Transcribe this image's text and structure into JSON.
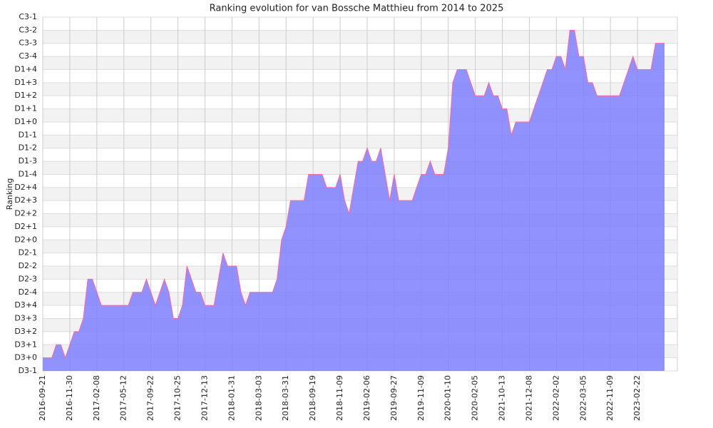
{
  "chart_data": {
    "type": "area",
    "title": "Ranking evolution for van Bossche Matthieu from 2014 to 2025",
    "y_label": "Ranking",
    "categories": [
      "2016-09-21",
      null,
      null,
      null,
      null,
      null,
      "2016-11-30",
      null,
      null,
      null,
      null,
      null,
      "2017-02-08",
      null,
      null,
      null,
      null,
      null,
      "2017-05-12",
      null,
      null,
      null,
      null,
      null,
      "2017-09-22",
      null,
      null,
      null,
      null,
      null,
      "2017-10-25",
      null,
      null,
      null,
      null,
      null,
      "2017-12-13",
      null,
      null,
      null,
      null,
      null,
      "2018-01-31",
      null,
      null,
      null,
      null,
      null,
      "2018-03-03",
      null,
      null,
      null,
      null,
      null,
      "2018-03-31",
      null,
      null,
      null,
      null,
      null,
      "2018-09-19",
      null,
      null,
      null,
      null,
      null,
      "2018-11-09",
      null,
      null,
      null,
      null,
      null,
      "2019-02-06",
      null,
      null,
      null,
      null,
      null,
      "2019-09-27",
      null,
      null,
      null,
      null,
      null,
      "2019-11-09",
      null,
      null,
      null,
      null,
      null,
      "2020-01-10",
      null,
      null,
      null,
      null,
      null,
      "2020-02-05",
      null,
      null,
      null,
      null,
      null,
      "2021-10-13",
      null,
      null,
      null,
      null,
      null,
      "2021-12-08",
      null,
      null,
      null,
      null,
      null,
      "2022-02-02",
      null,
      null,
      null,
      null,
      null,
      "2022-03-05",
      null,
      null,
      null,
      null,
      null,
      "2022-11-09",
      null,
      null,
      null,
      null,
      null,
      "2023-02-22",
      null,
      null,
      null,
      null,
      null,
      null
    ],
    "values": [
      1,
      1,
      1,
      2,
      2,
      1,
      2,
      3,
      3,
      4,
      7,
      7,
      6,
      5,
      5,
      5,
      5,
      5,
      5,
      5,
      6,
      6,
      6,
      7,
      6,
      5,
      6,
      7,
      6,
      4,
      4,
      5,
      8,
      7,
      6,
      6,
      5,
      5,
      5,
      7,
      9,
      8,
      8,
      8,
      6,
      5,
      6,
      6,
      6,
      6,
      6,
      6,
      7,
      10,
      11,
      13,
      13,
      13,
      13,
      15,
      15,
      15,
      15,
      14,
      14,
      14,
      15,
      13,
      12,
      14,
      16,
      16,
      17,
      16,
      16,
      17,
      15,
      13,
      15,
      13,
      13,
      13,
      13,
      14,
      15,
      15,
      16,
      15,
      15,
      15,
      17,
      22,
      23,
      23,
      23,
      22,
      21,
      21,
      21,
      22,
      21,
      21,
      20,
      20,
      18,
      19,
      19,
      19,
      19,
      20,
      21,
      22,
      23,
      23,
      24,
      24,
      23,
      26,
      26,
      24,
      24,
      22,
      22,
      21,
      21,
      21,
      21,
      21,
      21,
      22,
      23,
      24,
      23,
      23,
      23,
      23,
      25,
      25,
      25
    ],
    "color": "#7f7fff",
    "line_color": "#ff6699",
    "ylim": [
      0,
      27
    ],
    "yticks": [
      {
        "value": 0,
        "label": "D3-1"
      },
      {
        "value": 1,
        "label": "D3+0"
      },
      {
        "value": 2,
        "label": "D3+1"
      },
      {
        "value": 3,
        "label": "D3+2"
      },
      {
        "value": 4,
        "label": "D3+3"
      },
      {
        "value": 5,
        "label": "D3+4"
      },
      {
        "value": 6,
        "label": "D2-4"
      },
      {
        "value": 7,
        "label": "D2-3"
      },
      {
        "value": 8,
        "label": "D2-2"
      },
      {
        "value": 9,
        "label": "D2-1"
      },
      {
        "value": 10,
        "label": "D2+0"
      },
      {
        "value": 11,
        "label": "D2+1"
      },
      {
        "value": 12,
        "label": "D2+2"
      },
      {
        "value": 13,
        "label": "D2+3"
      },
      {
        "value": 14,
        "label": "D2+4"
      },
      {
        "value": 15,
        "label": "D1-4"
      },
      {
        "value": 16,
        "label": "D1-3"
      },
      {
        "value": 17,
        "label": "D1-2"
      },
      {
        "value": 18,
        "label": "D1-1"
      },
      {
        "value": 19,
        "label": "D1+0"
      },
      {
        "value": 20,
        "label": "D1+1"
      },
      {
        "value": 21,
        "label": "D1+2"
      },
      {
        "value": 22,
        "label": "D1+3"
      },
      {
        "value": 23,
        "label": "D1+4"
      },
      {
        "value": 24,
        "label": "C3-4"
      },
      {
        "value": 25,
        "label": "C3-3"
      },
      {
        "value": 26,
        "label": "C3-2"
      },
      {
        "value": 27,
        "label": "C3-1"
      }
    ],
    "grid": true
  }
}
